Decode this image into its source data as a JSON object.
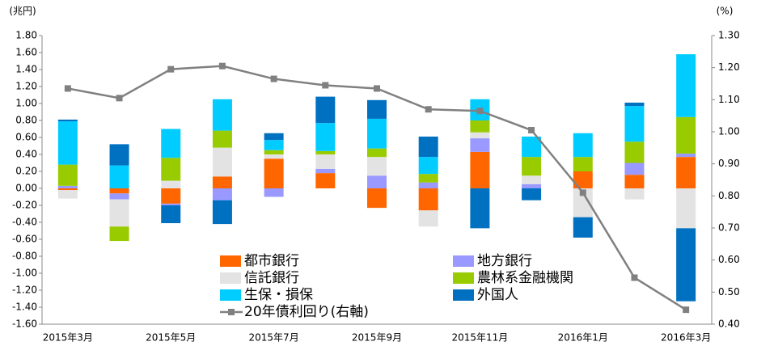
{
  "chart_data": {
    "type": "bar",
    "y_axis_label": "(兆円)",
    "y2_axis_label": "(%)",
    "categories": [
      "2015年3月",
      null,
      "2015年5月",
      null,
      "2015年7月",
      null,
      "2015年9月",
      null,
      "2015年11月",
      null,
      "2016年1月",
      null,
      "2016年3月"
    ],
    "series": [
      {
        "name": "都市銀行",
        "color": "#ff6600",
        "values": [
          -0.02,
          -0.06,
          -0.18,
          0.14,
          0.35,
          0.18,
          -0.23,
          -0.26,
          0.43,
          0.0,
          0.2,
          0.16,
          0.37
        ]
      },
      {
        "name": "地方銀行",
        "color": "#9999ff",
        "values": [
          0.03,
          -0.07,
          -0.02,
          -0.14,
          -0.1,
          0.05,
          0.15,
          0.07,
          0.16,
          0.05,
          0.0,
          0.14,
          0.04
        ]
      },
      {
        "name": "信託銀行",
        "color": "#e3e3e3",
        "values": [
          -0.1,
          -0.32,
          0.09,
          0.34,
          0.05,
          0.17,
          0.22,
          -0.19,
          0.07,
          0.1,
          -0.34,
          -0.13,
          -0.47
        ]
      },
      {
        "name": "農林系金融機関",
        "color": "#99cc00",
        "values": [
          0.25,
          -0.17,
          0.27,
          0.2,
          0.05,
          0.04,
          0.1,
          0.1,
          0.14,
          0.22,
          0.17,
          0.25,
          0.43
        ]
      },
      {
        "name": "生保・損保",
        "color": "#00ccff",
        "values": [
          0.51,
          0.27,
          0.34,
          0.37,
          0.12,
          0.33,
          0.35,
          0.2,
          0.25,
          0.24,
          0.28,
          0.42,
          0.74
        ]
      },
      {
        "name": "外国人",
        "color": "#0070c0",
        "values": [
          0.02,
          0.25,
          -0.21,
          -0.28,
          0.08,
          0.31,
          0.22,
          0.24,
          -0.47,
          -0.14,
          -0.24,
          0.04,
          -0.86
        ]
      },
      {
        "name": "20年債利回り(右軸)",
        "color": "#808080",
        "type": "line",
        "axis": "y2",
        "values": [
          1.135,
          1.105,
          1.195,
          1.205,
          1.165,
          1.145,
          1.135,
          1.07,
          1.065,
          1.005,
          0.81,
          0.545,
          0.445
        ]
      }
    ],
    "ylim": [
      -1.6,
      1.8
    ],
    "yticks": [
      {
        "value": -1.6,
        "label": "-1.60"
      },
      {
        "value": -1.4,
        "label": "-1.40"
      },
      {
        "value": -1.2,
        "label": "-1.20"
      },
      {
        "value": -1.0,
        "label": "-1.00"
      },
      {
        "value": -0.8,
        "label": "-0.80"
      },
      {
        "value": -0.6,
        "label": "-0.60"
      },
      {
        "value": -0.4,
        "label": "-0.40"
      },
      {
        "value": -0.2,
        "label": "-0.20"
      },
      {
        "value": 0,
        "label": "0.00"
      },
      {
        "value": 0.2,
        "label": "0.20"
      },
      {
        "value": 0.4,
        "label": "0.40"
      },
      {
        "value": 0.6,
        "label": "0.60"
      },
      {
        "value": 0.8,
        "label": "0.80"
      },
      {
        "value": 1.0,
        "label": "1.00"
      },
      {
        "value": 1.2,
        "label": "1.20"
      },
      {
        "value": 1.4,
        "label": "1.40"
      },
      {
        "value": 1.6,
        "label": "1.60"
      },
      {
        "value": 1.8,
        "label": "1.80"
      }
    ],
    "y2lim": [
      0.4,
      1.3
    ],
    "y2ticks": [
      {
        "value": 0.4,
        "label": "0.40"
      },
      {
        "value": 0.5,
        "label": "0.50"
      },
      {
        "value": 0.6,
        "label": "0.60"
      },
      {
        "value": 0.7,
        "label": "0.70"
      },
      {
        "value": 0.8,
        "label": "0.80"
      },
      {
        "value": 0.9,
        "label": "0.90"
      },
      {
        "value": 1.0,
        "label": "1.00"
      },
      {
        "value": 1.1,
        "label": "1.10"
      },
      {
        "value": 1.2,
        "label": "1.20"
      },
      {
        "value": 1.3,
        "label": "1.30"
      }
    ],
    "grid": false
  }
}
